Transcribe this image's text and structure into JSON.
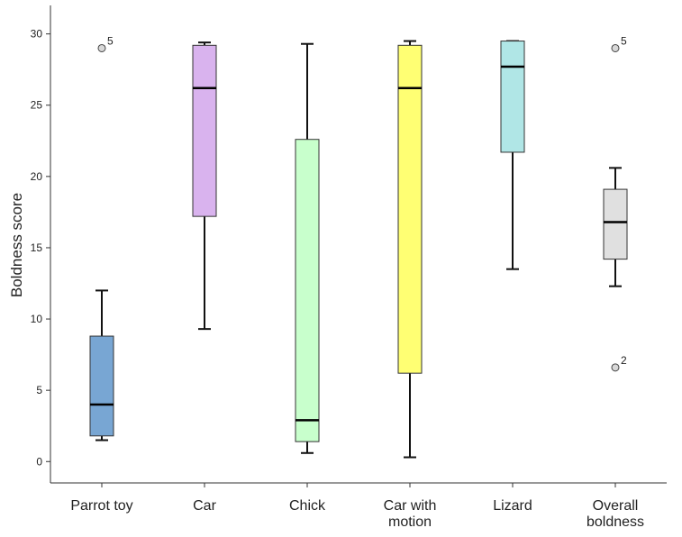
{
  "chart_data": {
    "type": "boxplot",
    "title": "",
    "xlabel": "",
    "ylabel": "Boldness score",
    "ylim": [
      -1.5,
      32
    ],
    "yticks": [
      0,
      5,
      10,
      15,
      20,
      25,
      30
    ],
    "grid": false,
    "legend": "none",
    "categories": [
      {
        "label": [
          "Parrot toy"
        ],
        "color": "#78a6d3",
        "whisker_low": 1.5,
        "q1": 1.8,
        "median": 4.0,
        "q3": 8.8,
        "whisker_high": 12.0,
        "outliers": [
          {
            "value": 29.0,
            "label": "5"
          }
        ]
      },
      {
        "label": [
          "Car"
        ],
        "color": "#d9b3ee",
        "whisker_low": 9.3,
        "q1": 17.2,
        "median": 26.2,
        "q3": 29.2,
        "whisker_high": 29.4,
        "outliers": []
      },
      {
        "label": [
          "Chick"
        ],
        "color": "#c8ffcc",
        "whisker_low": 0.6,
        "q1": 1.4,
        "median": 2.9,
        "q3": 22.6,
        "whisker_high": 29.3,
        "outliers": []
      },
      {
        "label": [
          "Car with",
          "motion"
        ],
        "color": "#ffff73",
        "whisker_low": 0.3,
        "q1": 6.2,
        "median": 26.2,
        "q3": 29.2,
        "whisker_high": 29.5,
        "outliers": []
      },
      {
        "label": [
          "Lizard"
        ],
        "color": "#b0e6e6",
        "whisker_low": 13.5,
        "q1": 21.7,
        "median": 27.7,
        "q3": 29.5,
        "whisker_high": 29.5,
        "outliers": []
      },
      {
        "label": [
          "Overall",
          "boldness"
        ],
        "color": "#e0e0e0",
        "whisker_low": 12.3,
        "q1": 14.2,
        "median": 16.8,
        "q3": 19.1,
        "whisker_high": 20.6,
        "outliers": [
          {
            "value": 29.0,
            "label": "5"
          },
          {
            "value": 6.6,
            "label": "2"
          }
        ]
      }
    ]
  }
}
